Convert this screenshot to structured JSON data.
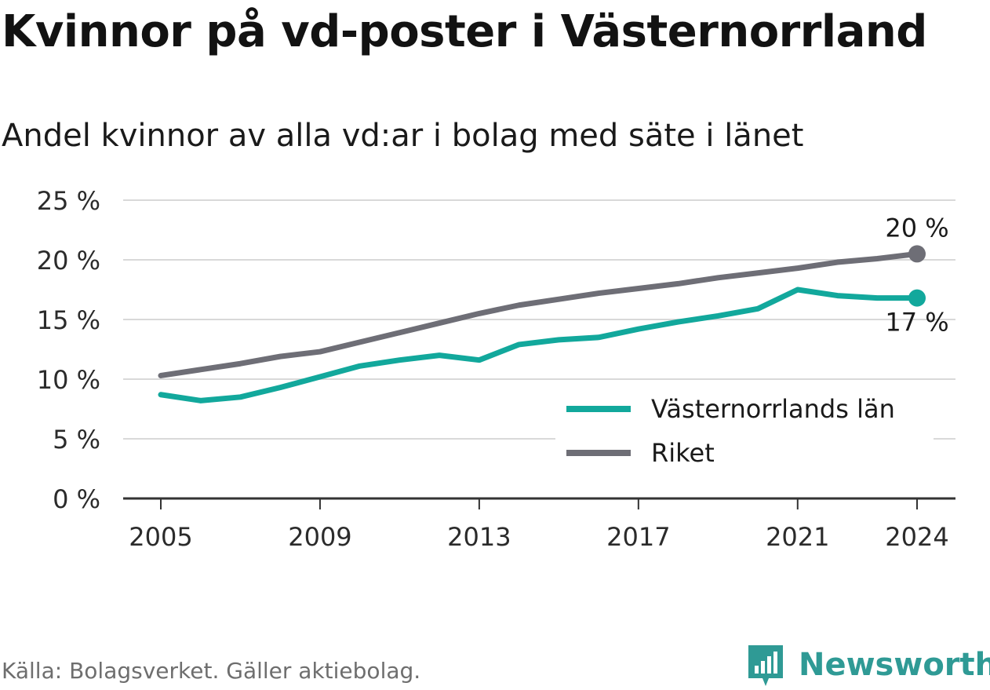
{
  "title": "Kvinnor på vd-poster i Västernorrland",
  "subtitle": "Andel kvinnor av alla vd:ar i bolag med säte i länet",
  "source": "Källa: Bolagsverket. Gäller aktiebolag.",
  "brand": "Newsworthy",
  "colors": {
    "vasternorrland": "#12a89c",
    "riket": "#6e6e76",
    "brand": "#2f9a95"
  },
  "chart_data": {
    "type": "line",
    "x": [
      2005,
      2006,
      2007,
      2008,
      2009,
      2010,
      2011,
      2012,
      2013,
      2014,
      2015,
      2016,
      2017,
      2018,
      2019,
      2020,
      2021,
      2022,
      2023,
      2024
    ],
    "x_ticks": [
      "2005",
      "2009",
      "2013",
      "2017",
      "2021",
      "2024"
    ],
    "y_ticks": [
      "0 %",
      "5 %",
      "10 %",
      "15 %",
      "20 %",
      "25 %"
    ],
    "ylim": [
      0,
      25
    ],
    "grid": true,
    "legend_position": "bottom-right",
    "series": [
      {
        "name": "Västernorrlands län",
        "values": [
          8.7,
          8.2,
          8.5,
          9.3,
          10.2,
          11.1,
          11.6,
          12.0,
          11.6,
          12.9,
          13.3,
          13.5,
          14.2,
          14.8,
          15.3,
          15.9,
          17.5,
          17.0,
          16.8,
          16.8
        ],
        "end_label": "17 %"
      },
      {
        "name": "Riket",
        "values": [
          10.3,
          10.8,
          11.3,
          11.9,
          12.3,
          13.1,
          13.9,
          14.7,
          15.5,
          16.2,
          16.7,
          17.2,
          17.6,
          18.0,
          18.5,
          18.9,
          19.3,
          19.8,
          20.1,
          20.5
        ],
        "end_label": "20 %"
      }
    ]
  }
}
